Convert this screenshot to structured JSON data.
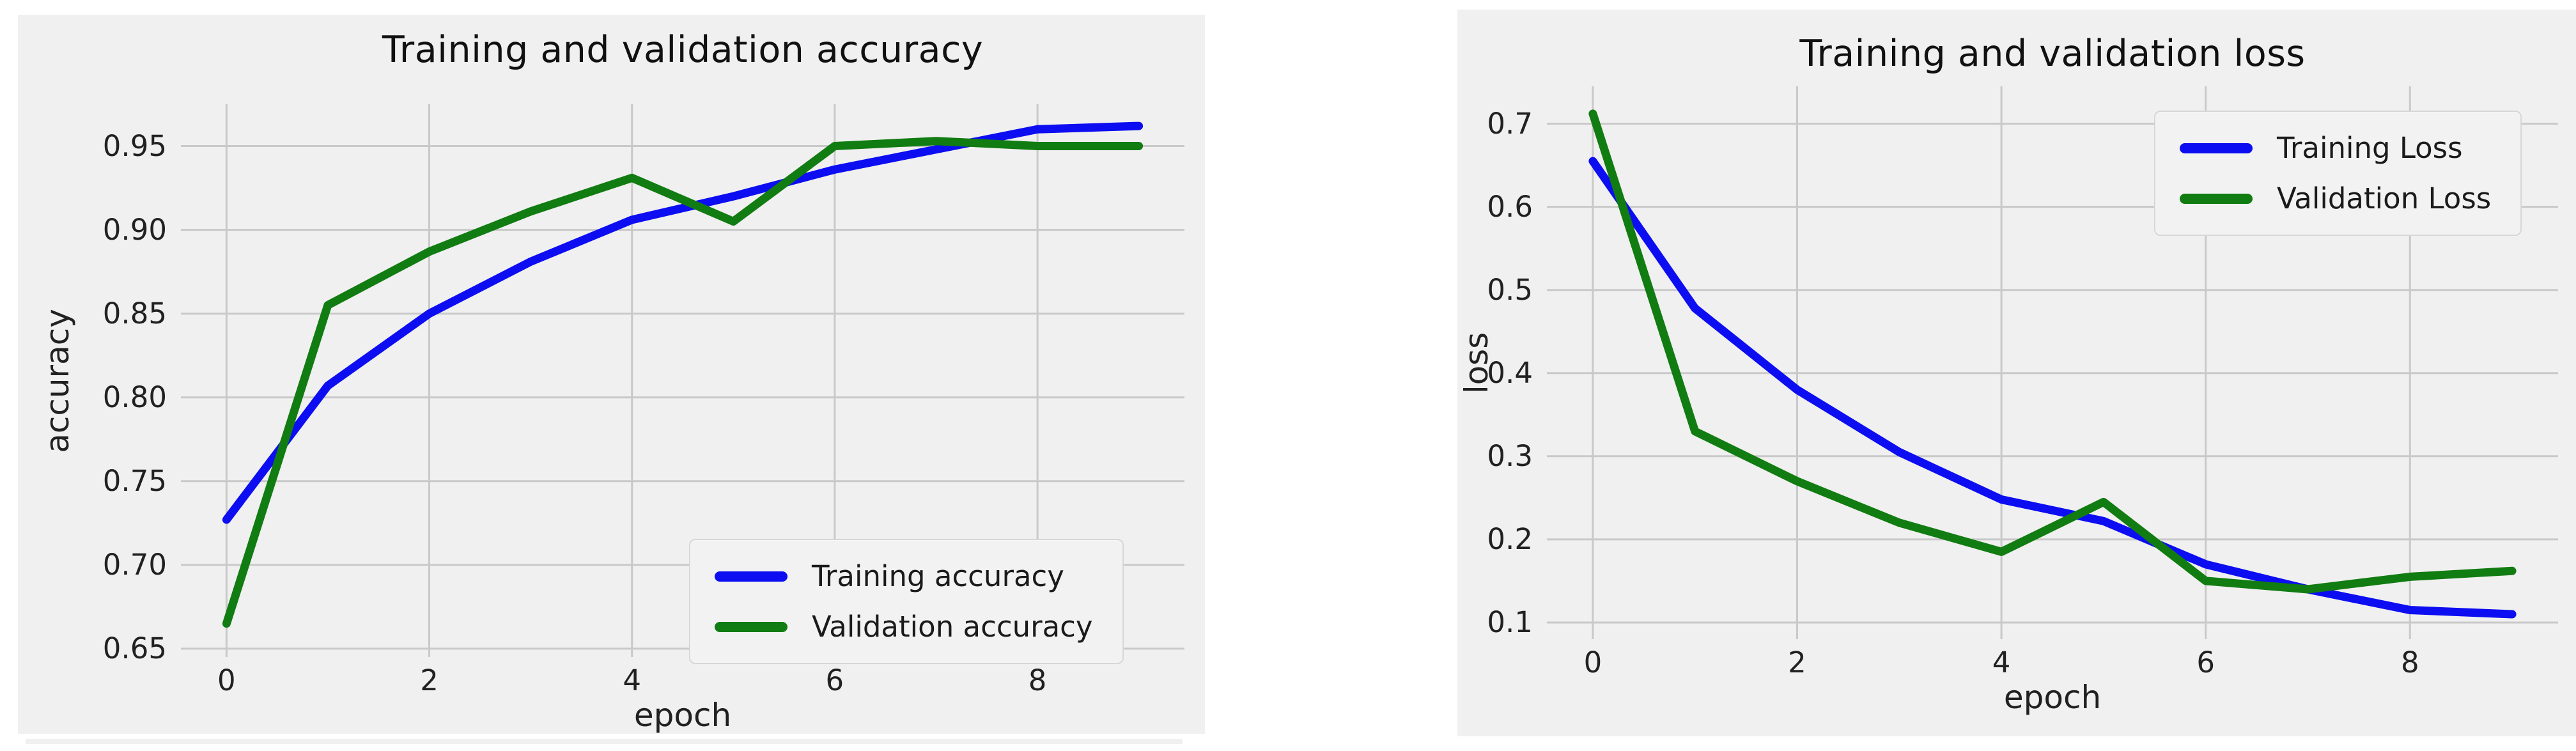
{
  "style": {
    "page_bg": "#ffffff",
    "figure_bg": "#f0f0f0",
    "grid_color": "#c9c9c9",
    "text_color": "#212121",
    "title_color": "#111111",
    "legend_bg": "#f2f2f2",
    "legend_border": "#d6d6d6",
    "training_color": "#0d0df2",
    "validation_color": "#117c11"
  },
  "chart_data": [
    {
      "type": "line",
      "title": "Training and validation accuracy",
      "xlabel": "epoch",
      "ylabel": "accuracy",
      "x": [
        0,
        1,
        2,
        3,
        4,
        5,
        6,
        7,
        8,
        9
      ],
      "series": [
        {
          "name": "Training accuracy",
          "color": "#0d0df2",
          "values": [
            0.727,
            0.807,
            0.85,
            0.881,
            0.906,
            0.92,
            0.936,
            0.948,
            0.96,
            0.962
          ]
        },
        {
          "name": "Validation accuracy",
          "color": "#117c11",
          "values": [
            0.665,
            0.855,
            0.887,
            0.911,
            0.931,
            0.905,
            0.95,
            0.953,
            0.95,
            0.95
          ]
        }
      ],
      "xlim": [
        -0.45,
        9.45
      ],
      "ylim": [
        0.645,
        0.975
      ],
      "xticks": [
        0,
        2,
        4,
        6,
        8
      ],
      "xtick_labels": [
        "0",
        "2",
        "4",
        "6",
        "8"
      ],
      "yticks": [
        0.65,
        0.7,
        0.75,
        0.8,
        0.85,
        0.9,
        0.95
      ],
      "ytick_labels": [
        "0.65",
        "0.70",
        "0.75",
        "0.80",
        "0.85",
        "0.90",
        "0.95"
      ],
      "grid": true,
      "legend_position": "lower right"
    },
    {
      "type": "line",
      "title": "Training and validation loss",
      "xlabel": "epoch",
      "ylabel": "loss",
      "x": [
        0,
        1,
        2,
        3,
        4,
        5,
        6,
        7,
        8,
        9
      ],
      "series": [
        {
          "name": "Training Loss",
          "color": "#0d0df2",
          "values": [
            0.655,
            0.478,
            0.38,
            0.305,
            0.248,
            0.222,
            0.17,
            0.14,
            0.115,
            0.11
          ]
        },
        {
          "name": "Validation Loss",
          "color": "#117c11",
          "values": [
            0.712,
            0.33,
            0.27,
            0.22,
            0.185,
            0.245,
            0.15,
            0.14,
            0.155,
            0.162
          ]
        }
      ],
      "xlim": [
        -0.45,
        9.45
      ],
      "ylim": [
        0.08,
        0.745
      ],
      "xticks": [
        0,
        2,
        4,
        6,
        8
      ],
      "xtick_labels": [
        "0",
        "2",
        "4",
        "6",
        "8"
      ],
      "yticks": [
        0.1,
        0.2,
        0.3,
        0.4,
        0.5,
        0.6,
        0.7
      ],
      "ytick_labels": [
        "0.1",
        "0.2",
        "0.3",
        "0.4",
        "0.5",
        "0.6",
        "0.7"
      ],
      "grid": true,
      "legend_position": "upper right"
    }
  ]
}
